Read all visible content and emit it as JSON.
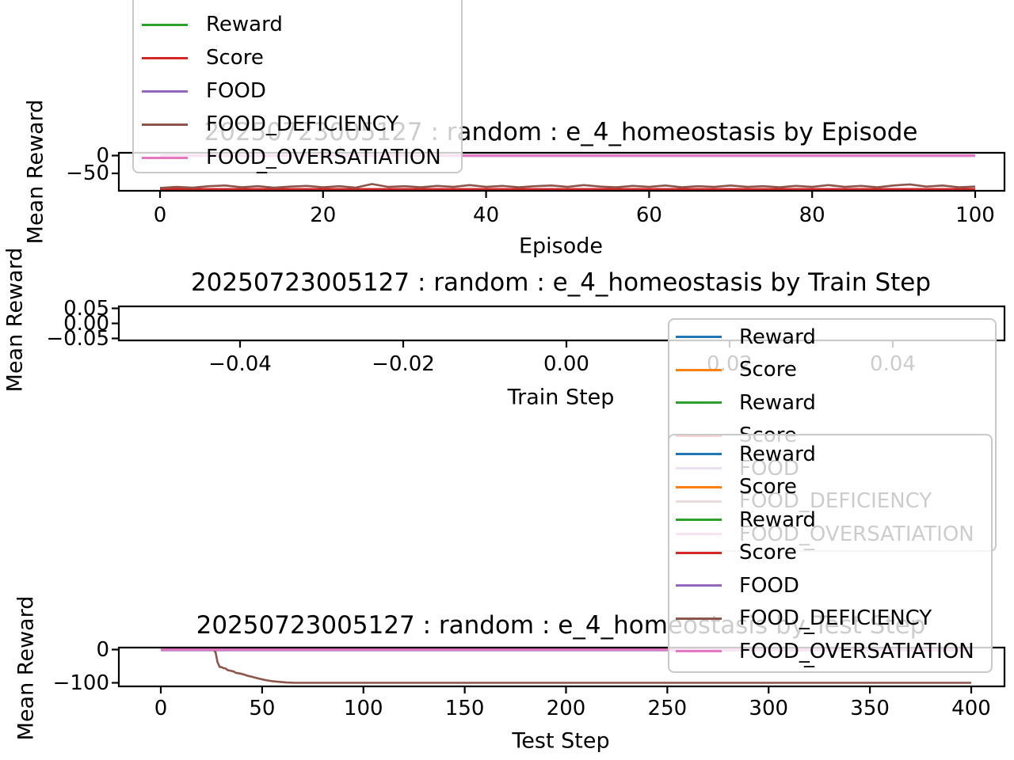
{
  "colors": {
    "blue": "#1f77b4",
    "orange": "#ff7f0e",
    "green": "#2ca02c",
    "red": "#d62728",
    "purple": "#9467bd",
    "brown": "#8c564b",
    "pink": "#e377c2",
    "axis": "#000000",
    "legend_border": "#c9c9c9",
    "faded_text": "#c9c9c9"
  },
  "plots": [
    {
      "id": "episode",
      "xtick_labels": [
        "0",
        "20",
        "40",
        "60",
        "80",
        "100"
      ],
      "ytick_labels": [
        "0",
        "−50"
      ]
    },
    {
      "id": "train",
      "xtick_labels": [
        "−0.04",
        "−0.02",
        "0.00",
        "0.02",
        "0.04"
      ],
      "ytick_labels": [
        "0.05",
        "0.00",
        "−0.05"
      ]
    },
    {
      "id": "test",
      "xtick_labels": [
        "0",
        "50",
        "100",
        "150",
        "200",
        "250",
        "300",
        "350",
        "400"
      ],
      "ytick_labels": [
        "0",
        "−100"
      ]
    }
  ],
  "legends": [
    {
      "id": "legend-episode",
      "entries": [
        {
          "label": "Reward",
          "color": "green"
        },
        {
          "label": "Score",
          "color": "red"
        },
        {
          "label": "FOOD",
          "color": "purple"
        },
        {
          "label": "FOOD_DEFICIENCY",
          "color": "brown"
        },
        {
          "label": "FOOD_OVERSATIATION",
          "color": "pink",
          "sub": "_"
        }
      ]
    },
    {
      "id": "legend-train",
      "entries": [
        {
          "label": "Reward",
          "color": "blue"
        },
        {
          "label": "Score",
          "color": "orange"
        },
        {
          "label": "Reward",
          "color": "green"
        },
        {
          "label": "Score",
          "color": "red"
        },
        {
          "label": "FOOD",
          "color": "purple"
        },
        {
          "label": "FOOD_DEFICIENCY",
          "color": "brown",
          "sub": "_"
        },
        {
          "label": "FOOD_OVERSATIATION",
          "color": "pink",
          "sub": "_"
        }
      ]
    },
    {
      "id": "legend-test",
      "entries": [
        {
          "label": "Reward",
          "color": "blue"
        },
        {
          "label": "Score",
          "color": "orange"
        },
        {
          "label": "Reward",
          "color": "green"
        },
        {
          "label": "Score",
          "color": "red"
        },
        {
          "label": "FOOD",
          "color": "purple"
        },
        {
          "label": "FOOD_DEFICIENCY",
          "color": "brown",
          "sub": "_"
        },
        {
          "label": "FOOD_OVERSATIATION",
          "color": "pink",
          "sub": "_"
        }
      ]
    }
  ],
  "chart_data": [
    {
      "type": "line",
      "title": "20250723005127 : random : e_4_homeostasis by Episode",
      "xlabel": "Episode",
      "ylabel": "Mean Reward",
      "xlim": [
        -7.5,
        103.5
      ],
      "ylim": [
        -101,
        8
      ],
      "xticks": [
        0,
        20,
        40,
        60,
        80,
        100
      ],
      "yticks": [
        0,
        -50
      ],
      "grid": false,
      "legend_position": "upper left, clipped at figure top",
      "series": [
        {
          "name": "Reward",
          "color": "#2ca02c",
          "points": [
            [
              0,
              0
            ],
            [
              100,
              0
            ]
          ]
        },
        {
          "name": "Score",
          "color": "#d62728",
          "points": [
            [
              0,
              -94
            ],
            [
              100,
              -94
            ]
          ]
        },
        {
          "name": "FOOD",
          "color": "#9467bd",
          "points": [
            [
              0,
              -1
            ],
            [
              100,
              -1
            ]
          ]
        },
        {
          "name": "FOOD_DEFICIENCY",
          "color": "#8c564b",
          "points": [
            [
              0,
              -91
            ],
            [
              2,
              -88
            ],
            [
              4,
              -90
            ],
            [
              6,
              -86
            ],
            [
              8,
              -84
            ],
            [
              10,
              -89
            ],
            [
              12,
              -86
            ],
            [
              14,
              -90
            ],
            [
              16,
              -87
            ],
            [
              18,
              -85
            ],
            [
              20,
              -89
            ],
            [
              22,
              -86
            ],
            [
              24,
              -90
            ],
            [
              26,
              -80
            ],
            [
              28,
              -88
            ],
            [
              30,
              -86
            ],
            [
              32,
              -89
            ],
            [
              34,
              -85
            ],
            [
              36,
              -88
            ],
            [
              38,
              -83
            ],
            [
              40,
              -88
            ],
            [
              42,
              -85
            ],
            [
              44,
              -89
            ],
            [
              46,
              -86
            ],
            [
              48,
              -84
            ],
            [
              50,
              -88
            ],
            [
              52,
              -83
            ],
            [
              54,
              -87
            ],
            [
              56,
              -89
            ],
            [
              58,
              -85
            ],
            [
              60,
              -88
            ],
            [
              62,
              -84
            ],
            [
              64,
              -89
            ],
            [
              66,
              -86
            ],
            [
              68,
              -88
            ],
            [
              70,
              -84
            ],
            [
              72,
              -88
            ],
            [
              74,
              -86
            ],
            [
              76,
              -89
            ],
            [
              78,
              -85
            ],
            [
              80,
              -88
            ],
            [
              82,
              -83
            ],
            [
              84,
              -88
            ],
            [
              86,
              -85
            ],
            [
              88,
              -89
            ],
            [
              90,
              -84
            ],
            [
              92,
              -81
            ],
            [
              94,
              -87
            ],
            [
              96,
              -84
            ],
            [
              98,
              -89
            ],
            [
              100,
              -87
            ]
          ]
        },
        {
          "name": "FOOD_OVERSATIATION",
          "color": "#e377c2",
          "points": [
            [
              0,
              0
            ],
            [
              100,
              0
            ]
          ]
        }
      ]
    },
    {
      "type": "line",
      "title": "20250723005127 : random : e_4_homeostasis by Train Step",
      "xlabel": "Train Step",
      "ylabel": "Mean Reward",
      "xlim": [
        -0.055,
        0.055
      ],
      "ylim": [
        -0.057,
        0.057
      ],
      "xticks": [
        -0.04,
        -0.02,
        0,
        0.02,
        0.04
      ],
      "yticks": [
        0.05,
        0,
        -0.05
      ],
      "grid": false,
      "legend_position": "upper right",
      "series": []
    },
    {
      "type": "line",
      "title": "20250723005127 : random : e_4_homeostasis by Test Step",
      "xlabel": "Test Step",
      "ylabel": "Mean Reward",
      "xlim": [
        -20,
        420
      ],
      "ylim": [
        -114,
        6
      ],
      "xticks": [
        0,
        50,
        100,
        150,
        200,
        250,
        300,
        350,
        400
      ],
      "yticks": [
        0,
        -100
      ],
      "grid": false,
      "legend_position": "upper right",
      "series": [
        {
          "name": "Reward",
          "color": "#1f77b4",
          "points": [
            [
              0,
              0
            ],
            [
              400,
              0
            ]
          ]
        },
        {
          "name": "Score",
          "color": "#ff7f0e",
          "points": [
            [
              0,
              0
            ],
            [
              400,
              0
            ]
          ]
        },
        {
          "name": "Reward",
          "color": "#2ca02c",
          "points": [
            [
              0,
              0
            ],
            [
              400,
              0
            ]
          ]
        },
        {
          "name": "Score",
          "color": "#d62728",
          "points": [
            [
              0,
              0
            ],
            [
              400,
              0
            ]
          ]
        },
        {
          "name": "FOOD",
          "color": "#9467bd",
          "points": [
            [
              0,
              -2
            ],
            [
              400,
              -2
            ]
          ]
        },
        {
          "name": "FOOD_DEFICIENCY",
          "color": "#8c564b",
          "points": [
            [
              0,
              0
            ],
            [
              26,
              0
            ],
            [
              27,
              -8
            ],
            [
              28,
              -38
            ],
            [
              29,
              -52
            ],
            [
              30,
              -53
            ],
            [
              31,
              -56
            ],
            [
              32,
              -57
            ],
            [
              33,
              -62
            ],
            [
              34,
              -63
            ],
            [
              36,
              -66
            ],
            [
              37,
              -70
            ],
            [
              39,
              -72
            ],
            [
              41,
              -75
            ],
            [
              43,
              -79
            ],
            [
              45,
              -82
            ],
            [
              47,
              -85
            ],
            [
              49,
              -88
            ],
            [
              51,
              -91
            ],
            [
              53,
              -93
            ],
            [
              55,
              -95
            ],
            [
              58,
              -97
            ],
            [
              62,
              -99
            ],
            [
              66,
              -100
            ],
            [
              70,
              -100
            ],
            [
              400,
              -100
            ]
          ]
        },
        {
          "name": "FOOD_OVERSATIATION",
          "color": "#e377c2",
          "points": [
            [
              0,
              0
            ],
            [
              400,
              0
            ]
          ]
        }
      ]
    }
  ]
}
